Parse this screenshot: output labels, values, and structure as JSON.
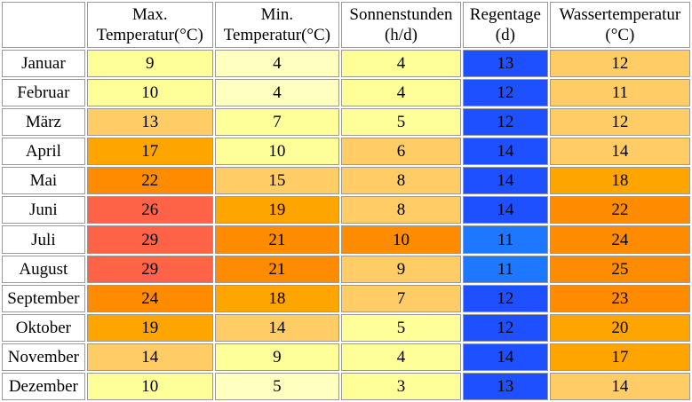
{
  "chart_data": {
    "type": "table",
    "columns": [
      {
        "key": "tmax",
        "label_lines": [
          "Max.",
          "Temperatur(°C)"
        ]
      },
      {
        "key": "tmin",
        "label_lines": [
          "Min.",
          "Temperatur(°C)"
        ]
      },
      {
        "key": "sun",
        "label_lines": [
          "Sonnenstunden",
          "(h/d)"
        ]
      },
      {
        "key": "rain",
        "label_lines": [
          "Regentage",
          "(d)"
        ]
      },
      {
        "key": "water",
        "label_lines": [
          "Wassertemperatur",
          "(°C)"
        ]
      }
    ],
    "rows": [
      {
        "month": "Januar",
        "tmax": 9,
        "tmin": 4,
        "sun": 4,
        "rain": 13,
        "water": 12
      },
      {
        "month": "Februar",
        "tmax": 10,
        "tmin": 4,
        "sun": 4,
        "rain": 12,
        "water": 11
      },
      {
        "month": "März",
        "tmax": 13,
        "tmin": 7,
        "sun": 5,
        "rain": 12,
        "water": 12
      },
      {
        "month": "April",
        "tmax": 17,
        "tmin": 10,
        "sun": 6,
        "rain": 14,
        "water": 14
      },
      {
        "month": "Mai",
        "tmax": 22,
        "tmin": 15,
        "sun": 8,
        "rain": 14,
        "water": 18
      },
      {
        "month": "Juni",
        "tmax": 26,
        "tmin": 19,
        "sun": 8,
        "rain": 14,
        "water": 22
      },
      {
        "month": "Juli",
        "tmax": 29,
        "tmin": 21,
        "sun": 10,
        "rain": 11,
        "water": 24
      },
      {
        "month": "August",
        "tmax": 29,
        "tmin": 21,
        "sun": 9,
        "rain": 11,
        "water": 25
      },
      {
        "month": "September",
        "tmax": 24,
        "tmin": 18,
        "sun": 7,
        "rain": 12,
        "water": 23
      },
      {
        "month": "Oktober",
        "tmax": 19,
        "tmin": 14,
        "sun": 5,
        "rain": 12,
        "water": 20
      },
      {
        "month": "November",
        "tmax": 14,
        "tmin": 9,
        "sun": 4,
        "rain": 14,
        "water": 17
      },
      {
        "month": "Dezember",
        "tmax": 10,
        "tmin": 5,
        "sun": 3,
        "rain": 13,
        "water": 14
      }
    ],
    "cell_colors": {
      "pale_yellow": "#ffffc0",
      "yellow": "#ffff99",
      "light_orange": "#ffcc66",
      "orange": "#ffa500",
      "dark_orange": "#ff8c00",
      "red": "#ff6347",
      "blue": "#1e50ff",
      "light_blue": "#1e78ff"
    }
  }
}
